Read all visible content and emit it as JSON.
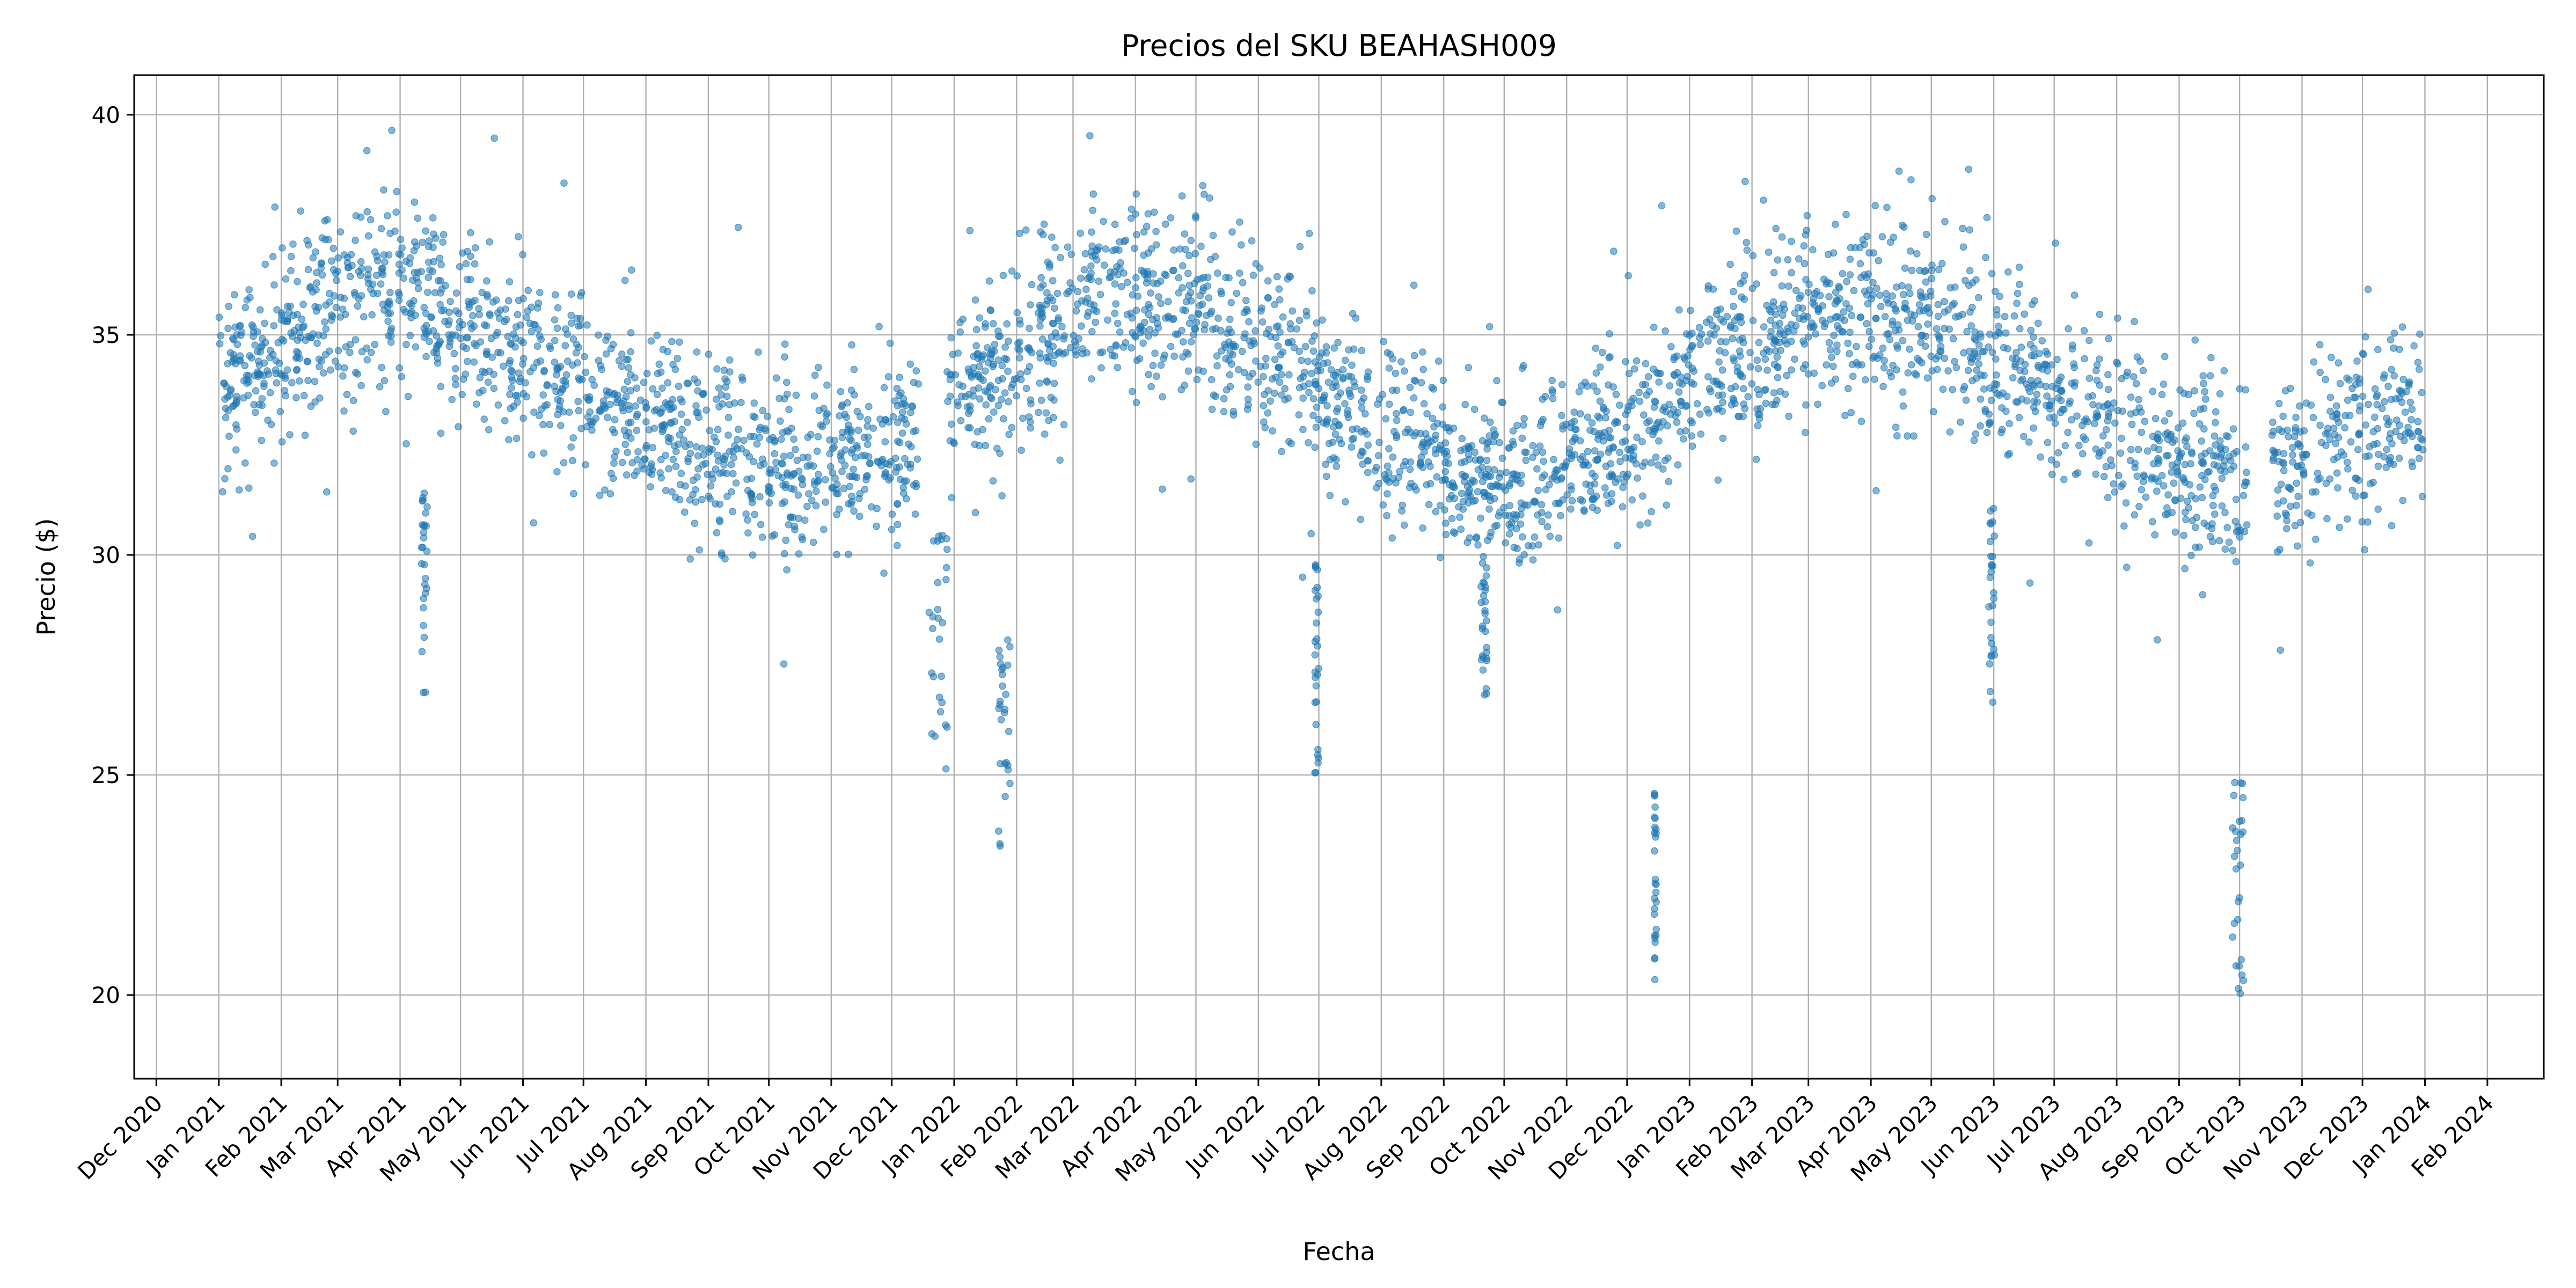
{
  "chart_data": {
    "type": "scatter",
    "title": "Precios del SKU BEAHASH009",
    "xlabel": "Fecha",
    "ylabel": "Precio ($)",
    "xlim": [
      "2020-11-20",
      "2024-02-29"
    ],
    "ylim": [
      18.1,
      40.9
    ],
    "grid": true,
    "marker_color": "#1f77b4",
    "marker_alpha": 0.55,
    "x_ticks": [
      "2020-12-01",
      "2021-01-01",
      "2021-02-01",
      "2021-03-01",
      "2021-04-01",
      "2021-05-01",
      "2021-06-01",
      "2021-07-01",
      "2021-08-01",
      "2021-09-01",
      "2021-10-01",
      "2021-11-01",
      "2021-12-01",
      "2022-01-01",
      "2022-02-01",
      "2022-03-01",
      "2022-04-01",
      "2022-05-01",
      "2022-06-01",
      "2022-07-01",
      "2022-08-01",
      "2022-09-01",
      "2022-10-01",
      "2022-11-01",
      "2022-12-01",
      "2023-01-01",
      "2023-02-01",
      "2023-03-01",
      "2023-04-01",
      "2023-05-01",
      "2023-06-01",
      "2023-07-01",
      "2023-08-01",
      "2023-09-01",
      "2023-10-01",
      "2023-11-01",
      "2023-12-01",
      "2024-01-01",
      "2024-02-01"
    ],
    "x_tick_labels": [
      "Dec 2020",
      "Jan 2021",
      "Feb 2021",
      "Mar 2021",
      "Apr 2021",
      "May 2021",
      "Jun 2021",
      "Jul 2021",
      "Aug 2021",
      "Sep 2021",
      "Oct 2021",
      "Nov 2021",
      "Dec 2021",
      "Jan 2022",
      "Feb 2022",
      "Mar 2022",
      "Apr 2022",
      "May 2022",
      "Jun 2022",
      "Jul 2022",
      "Aug 2022",
      "Sep 2022",
      "Oct 2022",
      "Nov 2022",
      "Dec 2022",
      "Jan 2023",
      "Feb 2023",
      "Mar 2023",
      "Apr 2023",
      "May 2023",
      "Jun 2023",
      "Jul 2023",
      "Aug 2023",
      "Sep 2023",
      "Oct 2023",
      "Nov 2023",
      "Dec 2023",
      "Jan 2024",
      "Feb 2024"
    ],
    "y_ticks": [
      20,
      25,
      30,
      35,
      40
    ],
    "y_tick_labels": [
      "20",
      "25",
      "30",
      "35",
      "40"
    ],
    "series": [
      {
        "description_points": [
          [
            "2021-01-01",
            33.5
          ],
          [
            "2021-01-15",
            34.2
          ],
          [
            "2021-02-01",
            34.8
          ],
          [
            "2021-02-15",
            35.3
          ],
          [
            "2021-03-01",
            35.6
          ],
          [
            "2021-03-15",
            35.9
          ],
          [
            "2021-04-01",
            36.0
          ],
          [
            "2021-04-10",
            35.8
          ],
          [
            "2021-04-25",
            35.2
          ],
          [
            "2021-05-10",
            35.0
          ],
          [
            "2021-06-01",
            34.5
          ],
          [
            "2021-06-20",
            34.0
          ],
          [
            "2021-07-10",
            33.5
          ],
          [
            "2021-08-01",
            33.0
          ],
          [
            "2021-08-20",
            32.6
          ],
          [
            "2021-09-10",
            32.3
          ],
          [
            "2021-10-01",
            32.0
          ],
          [
            "2021-10-20",
            31.9
          ],
          [
            "2021-11-10",
            32.2
          ],
          [
            "2021-12-01",
            32.6
          ],
          [
            "2021-12-20",
            33.2
          ],
          [
            "2022-01-10",
            33.8
          ],
          [
            "2022-02-01",
            34.5
          ],
          [
            "2022-02-20",
            35.3
          ],
          [
            "2022-03-10",
            35.8
          ],
          [
            "2022-04-01",
            36.0
          ],
          [
            "2022-04-20",
            35.9
          ],
          [
            "2022-05-10",
            35.4
          ],
          [
            "2022-06-01",
            34.8
          ],
          [
            "2022-06-20",
            34.2
          ],
          [
            "2022-07-10",
            33.5
          ],
          [
            "2022-08-01",
            32.8
          ],
          [
            "2022-08-20",
            32.3
          ],
          [
            "2022-09-10",
            32.0
          ],
          [
            "2022-10-01",
            31.7
          ],
          [
            "2022-10-20",
            31.8
          ],
          [
            "2022-11-10",
            32.2
          ],
          [
            "2022-12-01",
            32.8
          ],
          [
            "2022-12-20",
            33.5
          ],
          [
            "2023-01-10",
            34.2
          ],
          [
            "2023-02-01",
            34.8
          ],
          [
            "2023-02-20",
            35.3
          ],
          [
            "2023-03-10",
            35.6
          ],
          [
            "2023-04-01",
            35.7
          ],
          [
            "2023-04-20",
            35.5
          ],
          [
            "2023-05-10",
            35.1
          ],
          [
            "2023-06-01",
            34.6
          ],
          [
            "2023-06-20",
            34.0
          ],
          [
            "2023-07-10",
            33.5
          ],
          [
            "2023-08-01",
            32.9
          ],
          [
            "2023-08-20",
            32.4
          ],
          [
            "2023-09-10",
            32.0
          ],
          [
            "2023-10-01",
            31.9
          ],
          [
            "2023-10-20",
            32.1
          ],
          [
            "2023-11-10",
            32.5
          ],
          [
            "2023-12-01",
            33.0
          ],
          [
            "2023-12-28",
            33.3
          ]
        ],
        "spread": 1.7,
        "approx_point_count": 4100,
        "x_range": [
          "2021-01-01",
          "2023-12-31"
        ],
        "data_gaps": [
          [
            "2021-12-15",
            "2021-12-28"
          ],
          [
            "2023-10-05",
            "2023-10-17"
          ]
        ],
        "dips": [
          {
            "date": "2021-04-13",
            "range": [
              26.7,
              31.6
            ],
            "width_days": 3
          },
          {
            "date": "2021-12-24",
            "range": [
              25.1,
              30.8
            ],
            "width_days": 9
          },
          {
            "date": "2022-01-26",
            "range": [
              23.3,
              28.1
            ],
            "width_days": 6
          },
          {
            "date": "2022-06-30",
            "range": [
              24.8,
              30.0
            ],
            "width_days": 2
          },
          {
            "date": "2022-09-21",
            "range": [
              26.3,
              30.0
            ],
            "width_days": 3
          },
          {
            "date": "2022-12-15",
            "range": [
              19.9,
              24.6
            ],
            "width_days": 1
          },
          {
            "date": "2023-05-31",
            "range": [
              25.7,
              31.5
            ],
            "width_days": 3
          },
          {
            "date": "2023-09-30",
            "range": [
              19.2,
              25.5
            ],
            "width_days": 6
          }
        ],
        "max_value": 39.8,
        "min_value": 19.2
      }
    ]
  }
}
